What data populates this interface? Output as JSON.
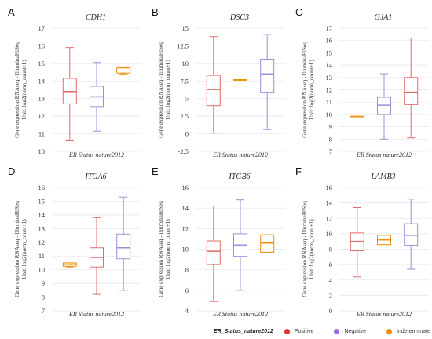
{
  "chart_data": [
    {
      "panel_letter": "A",
      "title": "CDH1",
      "type": "box",
      "ylabel": "Gene expression RNAseq - IlluminaHiSeq\nUnit: log2(norm_count+1)",
      "xlabel": "ER Status nature2012",
      "ylim": [
        10,
        17
      ],
      "yticks": [
        10,
        11,
        12,
        13,
        14,
        15,
        16,
        17
      ],
      "groups": [
        {
          "group": "Positive",
          "min": 10.6,
          "q1": 12.7,
          "median": 13.4,
          "q3": 14.15,
          "max": 15.9
        },
        {
          "group": "Negative",
          "min": 11.15,
          "q1": 12.55,
          "median": 13.1,
          "q3": 13.7,
          "max": 15.05
        },
        {
          "group": "Indeterminate",
          "min": 14.4,
          "q1": 14.45,
          "median": 14.75,
          "q3": 14.75,
          "max": 14.8
        }
      ]
    },
    {
      "panel_letter": "B",
      "title": "DSC3",
      "type": "box",
      "ylabel": "Gene expression RNAseq - IlluminaHiSeq\nUnit: log2(norm_count+1)",
      "xlabel": "ER Status nature2012",
      "ylim": [
        -2.5,
        15
      ],
      "yticks": [
        -2.5,
        0,
        2.5,
        5,
        7.5,
        10,
        12.5,
        15
      ],
      "groups": [
        {
          "group": "Positive",
          "min": 0.1,
          "q1": 4.0,
          "median": 6.3,
          "q3": 8.3,
          "max": 13.8
        },
        {
          "group": "Indeterminate",
          "min": 7.6,
          "q1": 7.6,
          "median": 7.65,
          "q3": 7.7,
          "max": 7.7
        },
        {
          "group": "Negative",
          "min": 0.6,
          "q1": 5.9,
          "median": 8.5,
          "q3": 10.6,
          "max": 14.1
        }
      ]
    },
    {
      "panel_letter": "C",
      "title": "GJA1",
      "type": "box",
      "ylabel": "Gene expression RNAseq - IlluminaHiSeq\nUnit: log2(norm_count+1)",
      "xlabel": "ER Status nature2012",
      "ylim": [
        7,
        17
      ],
      "yticks": [
        7,
        8,
        9,
        10,
        11,
        12,
        13,
        14,
        15,
        16,
        17
      ],
      "groups": [
        {
          "group": "Indeterminate",
          "min": 9.8,
          "q1": 9.8,
          "median": 9.82,
          "q3": 9.85,
          "max": 9.85
        },
        {
          "group": "Negative",
          "min": 8.0,
          "q1": 10.0,
          "median": 10.75,
          "q3": 11.4,
          "max": 13.3
        },
        {
          "group": "Positive",
          "min": 8.1,
          "q1": 10.8,
          "median": 11.8,
          "q3": 13.0,
          "max": 16.2
        }
      ]
    },
    {
      "panel_letter": "D",
      "title": "ITGA6",
      "type": "box",
      "ylabel": "Gene expression RNAseq - IlluminaHiSeq\nUnit: log2(norm_count+1)",
      "xlabel": "ER Status nature2012",
      "ylim": [
        7,
        16
      ],
      "yticks": [
        7,
        8,
        9,
        10,
        11,
        12,
        13,
        14,
        15,
        16
      ],
      "groups": [
        {
          "group": "Indeterminate",
          "min": 10.2,
          "q1": 10.25,
          "median": 10.4,
          "q3": 10.5,
          "max": 10.5
        },
        {
          "group": "Positive",
          "min": 8.2,
          "q1": 10.2,
          "median": 10.9,
          "q3": 11.6,
          "max": 13.8
        },
        {
          "group": "Negative",
          "min": 8.5,
          "q1": 10.8,
          "median": 11.6,
          "q3": 12.6,
          "max": 15.3
        }
      ]
    },
    {
      "panel_letter": "E",
      "title": "ITGB6",
      "type": "box",
      "ylabel": "Gene expression RNAseq - IlluminaHiSeq\nUnit: log2(norm_count+1)",
      "xlabel": "ER Status nature2012",
      "ylim": [
        4,
        16
      ],
      "yticks": [
        4,
        6,
        8,
        10,
        12,
        14,
        16
      ],
      "groups": [
        {
          "group": "Positive",
          "min": 4.9,
          "q1": 8.5,
          "median": 9.8,
          "q3": 10.8,
          "max": 14.2
        },
        {
          "group": "Negative",
          "min": 6.0,
          "q1": 9.3,
          "median": 10.4,
          "q3": 11.5,
          "max": 14.8
        },
        {
          "group": "Indeterminate",
          "min": 9.7,
          "q1": 9.7,
          "median": 10.6,
          "q3": 11.4,
          "max": 11.4
        }
      ]
    },
    {
      "panel_letter": "F",
      "title": "LAMB3",
      "type": "box",
      "ylabel": "Gene expression RNAseq - IlluminaHiSeq\nUnit: log2(norm_count+1)",
      "xlabel": "ER Status nature2012",
      "ylim": [
        0,
        16
      ],
      "yticks": [
        0,
        2,
        4,
        6,
        8,
        10,
        12,
        14,
        16
      ],
      "groups": [
        {
          "group": "Positive",
          "min": 4.4,
          "q1": 7.8,
          "median": 9.0,
          "q3": 10.1,
          "max": 13.4
        },
        {
          "group": "Indeterminate",
          "min": 8.6,
          "q1": 8.6,
          "median": 9.2,
          "q3": 9.8,
          "max": 9.8
        },
        {
          "group": "Negative",
          "min": 5.4,
          "q1": 8.5,
          "median": 9.8,
          "q3": 11.3,
          "max": 14.5
        }
      ]
    }
  ],
  "legend": {
    "title": "ER_Status_nature2012",
    "items": [
      {
        "label": "Positive",
        "color": "#e03030"
      },
      {
        "label": "Negative",
        "color": "#9a6fd6"
      },
      {
        "label": "Indeterminate",
        "color": "#f0900e"
      }
    ]
  },
  "colors": {
    "Positive": "#e36a6a",
    "Negative": "#a58ad8",
    "Indeterminate": "#f0900e",
    "gridline": "#e6e6e6",
    "axis_text": "#333333"
  }
}
